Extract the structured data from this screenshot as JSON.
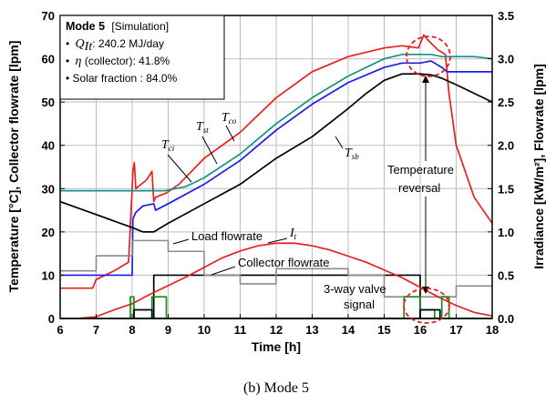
{
  "chart_data": {
    "type": "line",
    "caption": "(b)  Mode  5",
    "info_box": {
      "mode": "Mode 5",
      "mode_suffix": "[Simulation]",
      "q_symbol": "Q",
      "q_sub": "It",
      "q_value": ": 240.2 MJ/day",
      "eta_symbol": "η",
      "eta_value": " (collector): 41.8%",
      "solar_fraction": "• Solar fraction : 84.0%",
      "bullet": "•"
    },
    "xlabel": "Time [h]",
    "ylabel_left": "Temperature [°C], Collector flowrate [lpm]",
    "ylabel_right": "Irradiance [kW/m²], Flowrate [lpm]",
    "xlim": [
      6,
      18
    ],
    "ylim_left": [
      0,
      70
    ],
    "ylim_right": [
      0,
      3.5
    ],
    "x_ticks": [
      6,
      7,
      8,
      9,
      10,
      11,
      12,
      13,
      14,
      15,
      16,
      17,
      18
    ],
    "y_ticks_left": [
      0,
      10,
      20,
      30,
      40,
      50,
      60,
      70
    ],
    "y_ticks_right": [
      "0.0",
      "0.5",
      "1.0",
      "1.5",
      "2.0",
      "2.5",
      "3.0",
      "3.5"
    ],
    "grid": true,
    "colors": {
      "red": "#e8201f",
      "teal": "#16918a",
      "blue": "#1b1bf0",
      "black": "#000000",
      "gray": "#8c8c8c",
      "green": "#1a8a1a",
      "gridline": "#bdbdbd"
    },
    "series": [
      {
        "name": "T_co",
        "axis": "left",
        "color": "red",
        "x": [
          6,
          6.9,
          7.0,
          7.5,
          7.9,
          8.0,
          8.02,
          8.06,
          8.1,
          8.4,
          8.55,
          8.6,
          8.65,
          8.95,
          9.3,
          10.0,
          11.0,
          12.0,
          13.0,
          14.0,
          15.0,
          15.5,
          15.95,
          16.1,
          16.25,
          16.5,
          16.7,
          16.8,
          17.0,
          17.5,
          18.0
        ],
        "y": [
          7,
          7,
          9,
          11,
          13,
          30,
          34,
          36,
          30,
          32,
          34,
          27,
          28,
          29,
          31,
          37,
          43,
          51,
          57,
          60.5,
          62.5,
          63,
          62.5,
          65.5,
          64,
          62,
          61,
          52,
          40,
          28,
          22
        ]
      },
      {
        "name": "T_st",
        "axis": "left",
        "color": "teal",
        "x": [
          6,
          8.0,
          8.9,
          9.5,
          10.0,
          11.0,
          12.0,
          13.0,
          14.0,
          15.0,
          15.5,
          16.0,
          16.3,
          16.6,
          17.0,
          17.5,
          18.0
        ],
        "y": [
          29.5,
          29.5,
          29.5,
          30.5,
          32.5,
          38,
          45,
          51,
          56,
          60,
          61,
          61,
          61,
          60.5,
          60.5,
          60.5,
          60
        ]
      },
      {
        "name": "T_ci",
        "axis": "left",
        "color": "blue",
        "x": [
          6,
          8.0,
          8.02,
          8.1,
          8.3,
          8.6,
          8.65,
          9.0,
          10.0,
          11.0,
          12.0,
          13.0,
          14.0,
          15.0,
          15.5,
          16.0,
          16.3,
          16.6,
          16.75,
          17.0,
          17.5,
          18.0
        ],
        "y": [
          10,
          10,
          23,
          24.5,
          26,
          26.5,
          25,
          26.5,
          31,
          36.5,
          43.5,
          49.5,
          54.5,
          58,
          59,
          59,
          59.5,
          58,
          57,
          57,
          57,
          57
        ]
      },
      {
        "name": "T_sb",
        "axis": "left",
        "color": "black",
        "x": [
          6,
          7.0,
          8.0,
          8.3,
          8.6,
          9.0,
          10.0,
          11.0,
          12.0,
          13.0,
          14.0,
          14.5,
          15.0,
          15.5,
          16.0,
          16.3,
          16.6,
          17.0,
          17.5,
          18.0
        ],
        "y": [
          27,
          24,
          21,
          20,
          20,
          22,
          26.5,
          31,
          37,
          42,
          48.5,
          52,
          55,
          56.5,
          56.5,
          56.3,
          55.5,
          54,
          52,
          50
        ]
      },
      {
        "name": "Collector flowrate",
        "axis": "left",
        "color": "black",
        "x": [
          6,
          8.0,
          8.0,
          8.6,
          8.6,
          16.0,
          16.0,
          18.0
        ],
        "y": [
          0,
          0,
          0,
          0,
          10,
          10,
          0,
          0
        ]
      },
      {
        "name": "Load flowrate",
        "axis": "left",
        "color": "gray",
        "x": [
          6,
          7.0,
          7.0,
          8.0,
          8.0,
          9.0,
          9.0,
          10.0,
          10.0,
          11.0,
          11.0,
          12.0,
          12.0,
          14.0,
          14.0,
          15.0,
          15.0,
          15.6,
          15.6,
          17.0,
          17.0,
          18.0
        ],
        "y": [
          11,
          11,
          14.5,
          14.5,
          18,
          18,
          15.5,
          15.5,
          10,
          10,
          8,
          8,
          11.5,
          11.5,
          10,
          10,
          5,
          5,
          5,
          5,
          7.5,
          7.5
        ]
      },
      {
        "name": "I_t",
        "axis": "right",
        "color": "red",
        "x": [
          6.0,
          6.5,
          7.0,
          7.5,
          8.0,
          8.5,
          9.0,
          9.5,
          10.0,
          10.5,
          11.0,
          11.5,
          12.0,
          12.5,
          13.0,
          13.5,
          14.0,
          14.5,
          15.0,
          15.5,
          16.0,
          16.5,
          17.0,
          17.5,
          18.0
        ],
        "y": [
          0.0,
          0.0,
          0.02,
          0.1,
          0.17,
          0.28,
          0.38,
          0.48,
          0.59,
          0.7,
          0.78,
          0.84,
          0.87,
          0.87,
          0.84,
          0.79,
          0.72,
          0.65,
          0.56,
          0.47,
          0.36,
          0.25,
          0.15,
          0.07,
          0.03
        ]
      },
      {
        "name": "3-way valve signal",
        "axis": "left",
        "color": "green",
        "x": [
          6,
          7.95,
          7.95,
          8.05,
          8.05,
          8.55,
          8.55,
          8.95,
          8.95,
          15.55,
          15.55,
          16.0,
          16.0,
          16.4,
          16.4,
          16.6,
          16.6,
          16.8,
          16.8,
          18.0
        ],
        "y": [
          0,
          0,
          5,
          5,
          0,
          0,
          5,
          5,
          0,
          0,
          5,
          5,
          2,
          2,
          0,
          0,
          5,
          5,
          0,
          0
        ]
      },
      {
        "name": "valve step",
        "axis": "left",
        "color": "black",
        "x": [
          8.05,
          8.05,
          8.55,
          8.55,
          16.0,
          16.0,
          16.55,
          16.55
        ],
        "y": [
          0,
          2,
          2,
          0,
          0,
          2,
          2,
          0
        ]
      }
    ],
    "annotations": {
      "t_co": "T",
      "t_co_sub": "co",
      "t_st": "T",
      "t_st_sub": "st",
      "t_ci": "T",
      "t_ci_sub": "ci",
      "t_sb": "T",
      "t_sb_sub": "sb",
      "i_t": "I",
      "i_t_sub": "t",
      "load_flowrate": "Load flowrate",
      "collector_flowrate": "Collector flowrate",
      "valve_line1": "3-way valve",
      "valve_line2": "signal",
      "reversal_line1": "Temperature",
      "reversal_line2": "reversal"
    }
  }
}
